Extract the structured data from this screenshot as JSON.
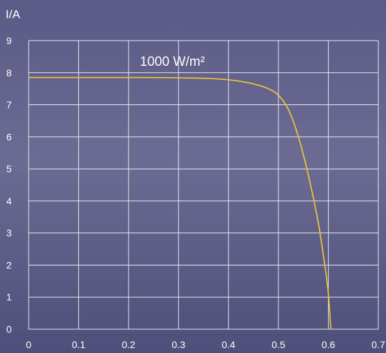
{
  "chart_data": {
    "type": "line",
    "title": "",
    "xlabel": "",
    "ylabel": "I/A",
    "xlim": [
      0,
      0.7
    ],
    "ylim": [
      0,
      9
    ],
    "x_ticks": [
      "0",
      "0.1",
      "0.2",
      "0.3",
      "0.4",
      "0.5",
      "0.6",
      "0.7"
    ],
    "y_ticks": [
      "0",
      "1",
      "2",
      "3",
      "4",
      "5",
      "6",
      "7",
      "8",
      "9"
    ],
    "grid": true,
    "annotation": "1000 W/m²",
    "series": [
      {
        "color": "#e8c23a",
        "x": [
          0,
          0.1,
          0.2,
          0.3,
          0.4,
          0.45,
          0.48,
          0.5,
          0.52,
          0.54,
          0.56,
          0.58,
          0.59,
          0.6,
          0.605
        ],
        "y": [
          7.85,
          7.85,
          7.85,
          7.84,
          7.78,
          7.65,
          7.5,
          7.3,
          6.85,
          6.0,
          4.8,
          3.3,
          2.3,
          1.1,
          0.0
        ]
      }
    ]
  },
  "colors": {
    "grid": "#ffffff",
    "text": "#ffffff",
    "curve": "#e8c23a"
  }
}
